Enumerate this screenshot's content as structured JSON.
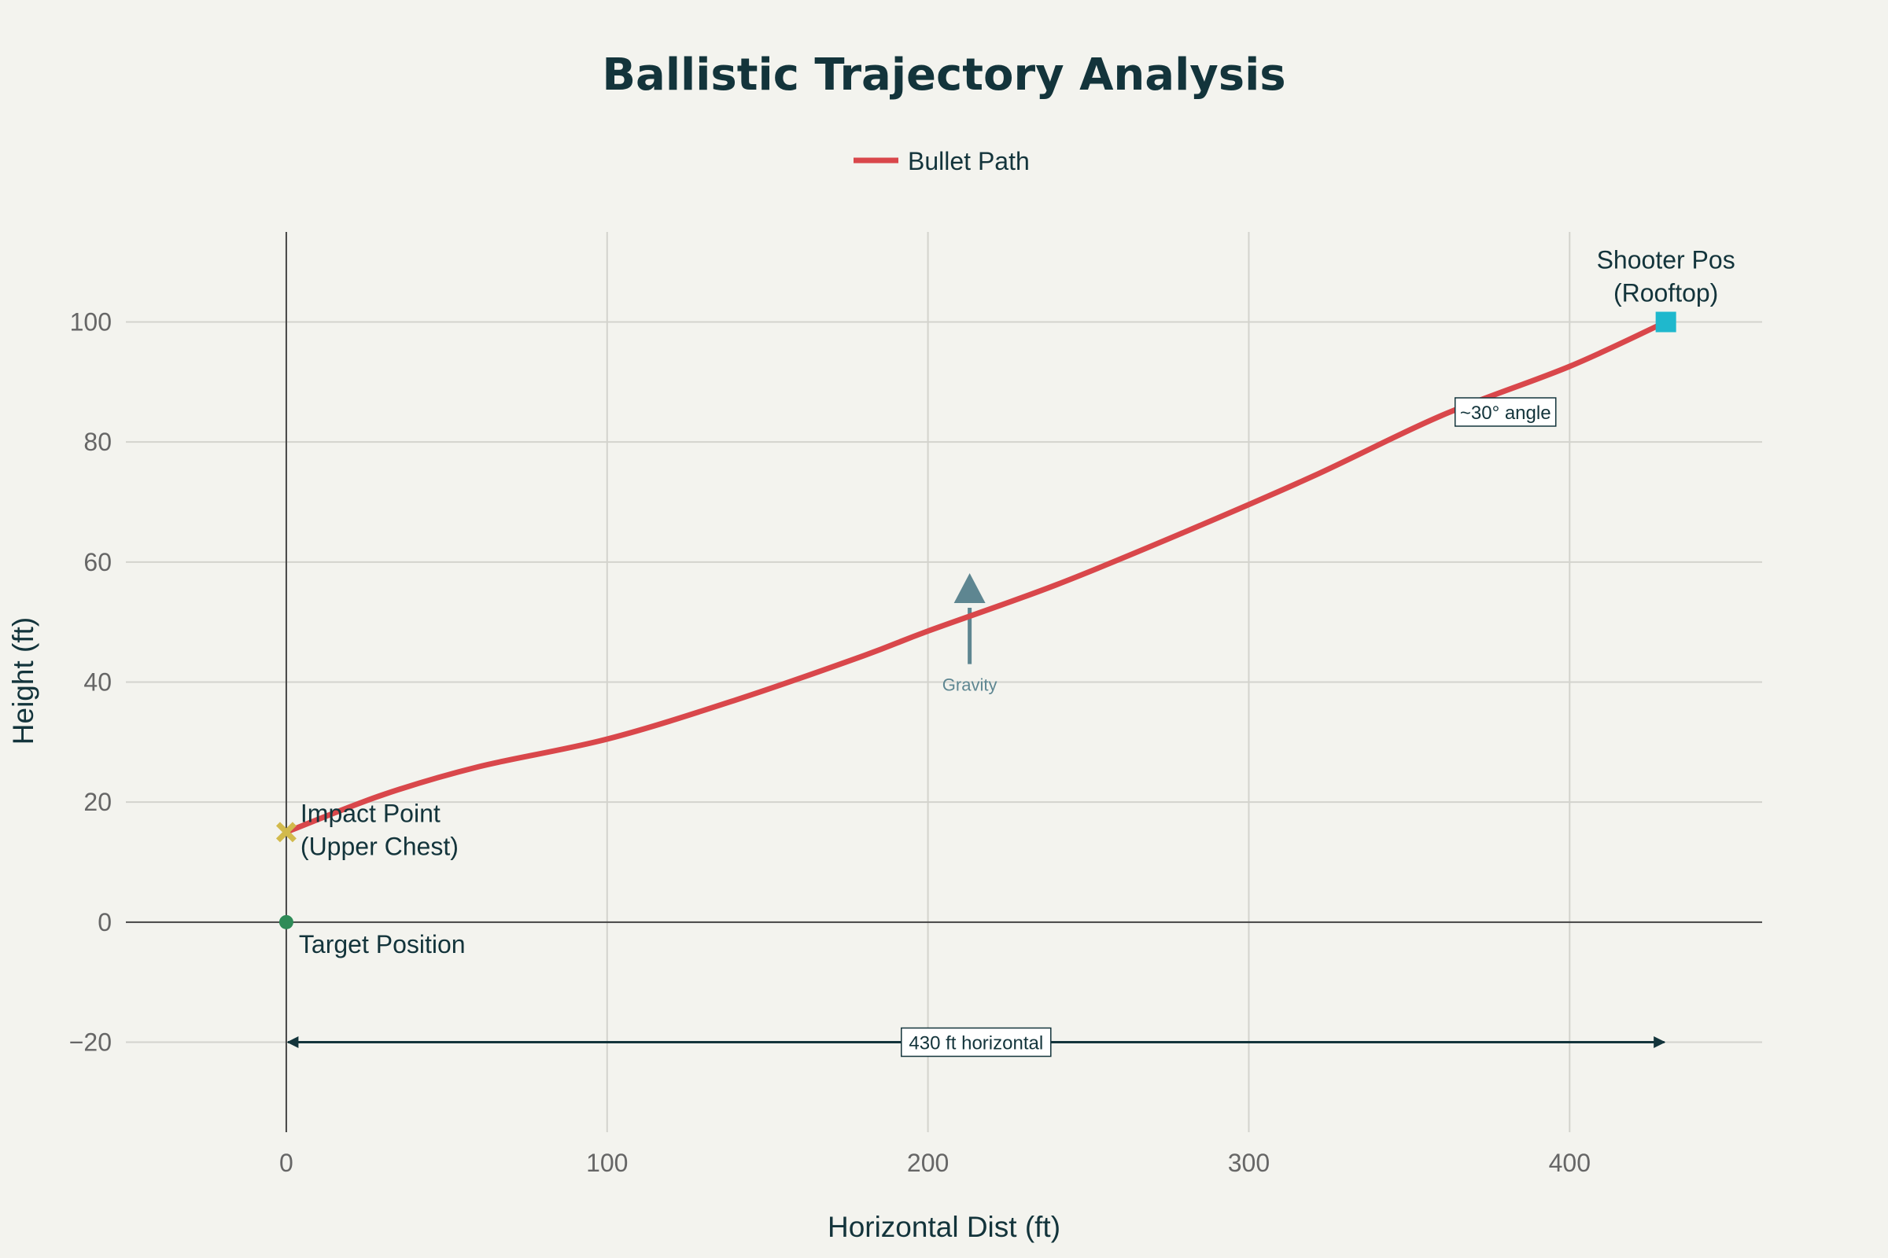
{
  "chart_data": {
    "type": "line",
    "title": "Ballistic Trajectory Analysis",
    "xlabel": "Horizontal Dist (ft)",
    "ylabel": "Height (ft)",
    "xlim": [
      -50,
      460
    ],
    "ylim": [
      -35,
      115
    ],
    "x_ticks": [
      0,
      100,
      200,
      300,
      400
    ],
    "y_ticks": [
      -20,
      0,
      20,
      40,
      60,
      80,
      100
    ],
    "grid": true,
    "legend": {
      "position": "top-center",
      "entries": [
        "Bullet Path"
      ]
    },
    "colors": {
      "bullet_path": "#d9474b",
      "shooter": "#1fb8cd",
      "impact": "#d2ba4c",
      "target": "#2e8b57",
      "gravity": "#5e8691",
      "text": "#13343b",
      "grid": "#d3d3cd",
      "background": "#f3f3ee"
    },
    "series": [
      {
        "name": "Bullet Path",
        "x": [
          0,
          30,
          60,
          100,
          140,
          180,
          200,
          240,
          280,
          320,
          360,
          400,
          430
        ],
        "y": [
          15,
          21.2,
          25.9,
          30.5,
          37,
          44.4,
          48.5,
          56.2,
          65,
          74.3,
          84.4,
          92.6,
          100
        ]
      }
    ],
    "points": [
      {
        "label": "Shooter Pos",
        "label_line2": "(Rooftop)",
        "x": 430,
        "y": 100,
        "marker": "square"
      },
      {
        "label": "Impact Point",
        "label_line2": "(Upper Chest)",
        "x": 0,
        "y": 15,
        "marker": "x"
      },
      {
        "label": "Target Position",
        "x": 0,
        "y": 0,
        "marker": "circle"
      }
    ],
    "annotations": {
      "angle": {
        "text": "~30° angle",
        "x": 380,
        "y": 85
      },
      "gravity": {
        "text": "Gravity",
        "x": 213,
        "y_tail": 43,
        "y_head": 55
      },
      "horizontal": {
        "text": "430 ft horizontal",
        "x_start": 0,
        "x_end": 430,
        "y": -20
      }
    }
  }
}
